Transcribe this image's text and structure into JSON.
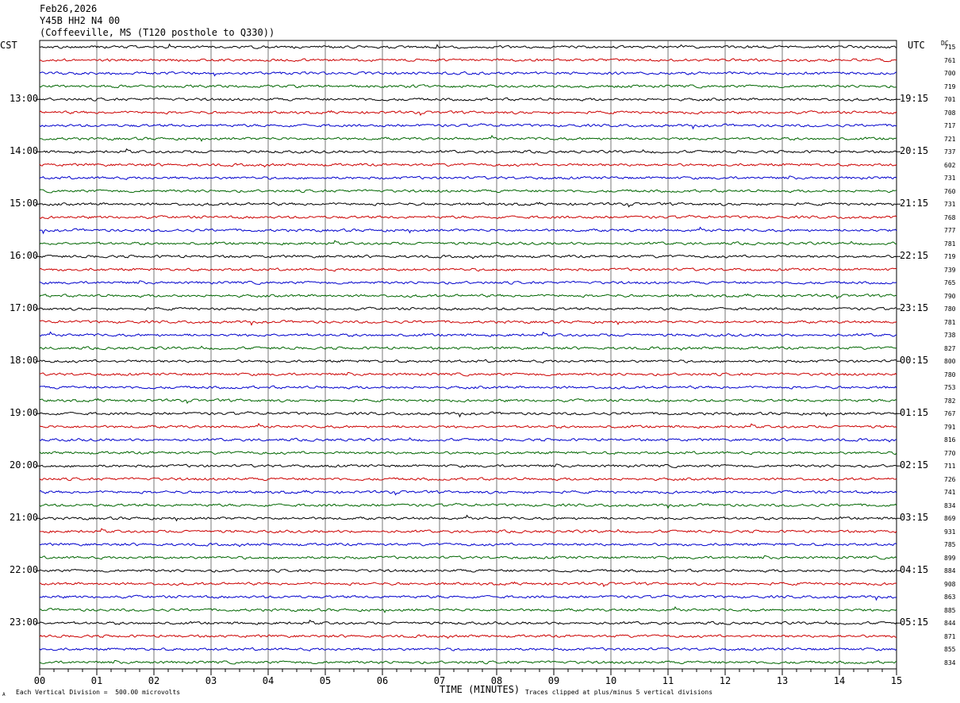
{
  "header": {
    "date": "Feb26,2026",
    "station": "Y45B HH2 N4 00",
    "location": "(Coffeeville, MS (T120 posthole to Q330))"
  },
  "left_tz": "CST",
  "right_tz": "UTC",
  "dc_label": "DC",
  "footer": {
    "scale_note": "Each Vertical Division =  500.00 microvolts",
    "xlabel": "TIME (MINUTES)",
    "clip_note": "Traces clipped at plus/minus 5 vertical divisions",
    "corner_mark": "A"
  },
  "colors": {
    "trace_cycle": [
      "#000000",
      "#cc0000",
      "#0000cc",
      "#006600"
    ],
    "grid": "#555555"
  },
  "chart_data": {
    "type": "line",
    "title": "Feb26,2026 Y45B HH2 N4 00 (Coffeeville, MS (T120 posthole to Q330))",
    "xlabel": "TIME (MINUTES)",
    "xlim": [
      0,
      15
    ],
    "x_ticks": [
      "00",
      "01",
      "02",
      "03",
      "04",
      "05",
      "06",
      "07",
      "08",
      "09",
      "10",
      "11",
      "12",
      "13",
      "14",
      "15"
    ],
    "traces_per_hour": 4,
    "trace_count": 48,
    "left_hour_labels": [
      "13:00",
      "14:00",
      "15:00",
      "16:00",
      "17:00",
      "18:00",
      "19:00",
      "20:00",
      "21:00",
      "22:00",
      "23:00"
    ],
    "right_hour_labels": [
      "19:15",
      "20:15",
      "21:15",
      "22:15",
      "23:15",
      "00:15",
      "01:15",
      "02:15",
      "03:15",
      "04:15",
      "05:15"
    ],
    "dc_offsets": [
      715,
      761,
      700,
      719,
      701,
      708,
      717,
      721,
      737,
      602,
      731,
      760,
      731,
      768,
      777,
      781,
      719,
      739,
      765,
      790,
      780,
      781,
      738,
      827,
      800,
      780,
      753,
      782,
      767,
      791,
      816,
      770,
      711,
      726,
      741,
      834,
      869,
      931,
      785,
      899,
      884,
      908,
      863,
      885,
      844,
      871,
      855,
      834
    ]
  }
}
